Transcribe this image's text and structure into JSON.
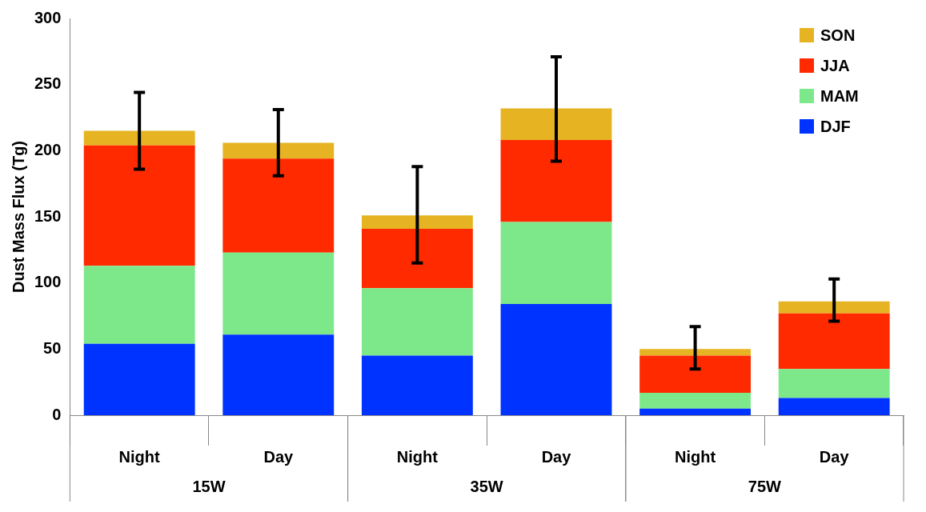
{
  "chart_data": {
    "type": "bar",
    "stacked": true,
    "ylabel": "Dust Mass Flux (Tg)",
    "categories": [
      "Night",
      "Day",
      "Night",
      "Day",
      "Night",
      "Day"
    ],
    "annotations": [
      "15W",
      "35W",
      "75W"
    ],
    "ylim": [
      0,
      300
    ],
    "yticks": [
      0,
      50,
      100,
      150,
      200,
      250,
      300
    ],
    "legend": "top right",
    "series": [
      {
        "name": "DJF",
        "color": "#0033ff",
        "values": [
          54,
          61,
          45,
          84,
          5,
          13
        ]
      },
      {
        "name": "MAM",
        "color": "#7de88a",
        "values": [
          59,
          62,
          51,
          62,
          12,
          22
        ]
      },
      {
        "name": "JJA",
        "color": "#ff2a00",
        "values": [
          91,
          71,
          45,
          62,
          28,
          42
        ]
      },
      {
        "name": "SON",
        "color": "#e6b422",
        "values": [
          11,
          12,
          10,
          24,
          5,
          9
        ],
        "errors": [
          [
            186,
            244
          ],
          [
            181,
            231
          ],
          [
            115,
            188
          ],
          [
            192,
            271
          ],
          [
            35,
            67
          ],
          [
            71,
            103
          ]
        ]
      }
    ]
  }
}
